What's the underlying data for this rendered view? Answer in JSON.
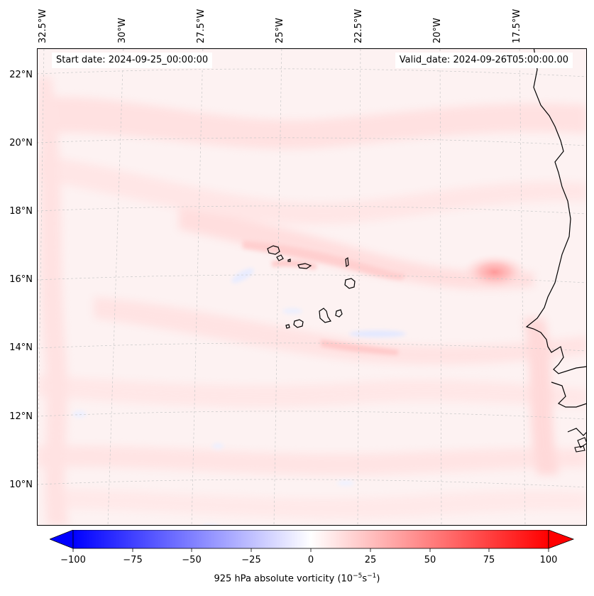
{
  "map": {
    "start_label": "Start date: 2024-09-25_00:00:00",
    "valid_label": "Valid_date: 2024-09-26T05:00:00.00",
    "lon_labels": [
      "32.5°W",
      "30°W",
      "27.5°W",
      "25°W",
      "22.5°W",
      "20°W",
      "17.5°W"
    ],
    "lat_labels": [
      "22°N",
      "20°N",
      "18°N",
      "16°N",
      "14°N",
      "12°N",
      "10°N"
    ],
    "features": [
      "coastline-west-africa",
      "cape-verde-islands"
    ]
  },
  "colorbar": {
    "title": "925 hPa absolute vorticity (10",
    "title_exp1": "−5",
    "title_mid": "s",
    "title_exp2": "−1",
    "title_end": ")",
    "ticks": [
      "−100",
      "−75",
      "−50",
      "−25",
      "0",
      "25",
      "50",
      "75",
      "100"
    ],
    "min_color": "#0000ff",
    "mid_color": "#ffffff",
    "max_color": "#ff0000"
  }
}
